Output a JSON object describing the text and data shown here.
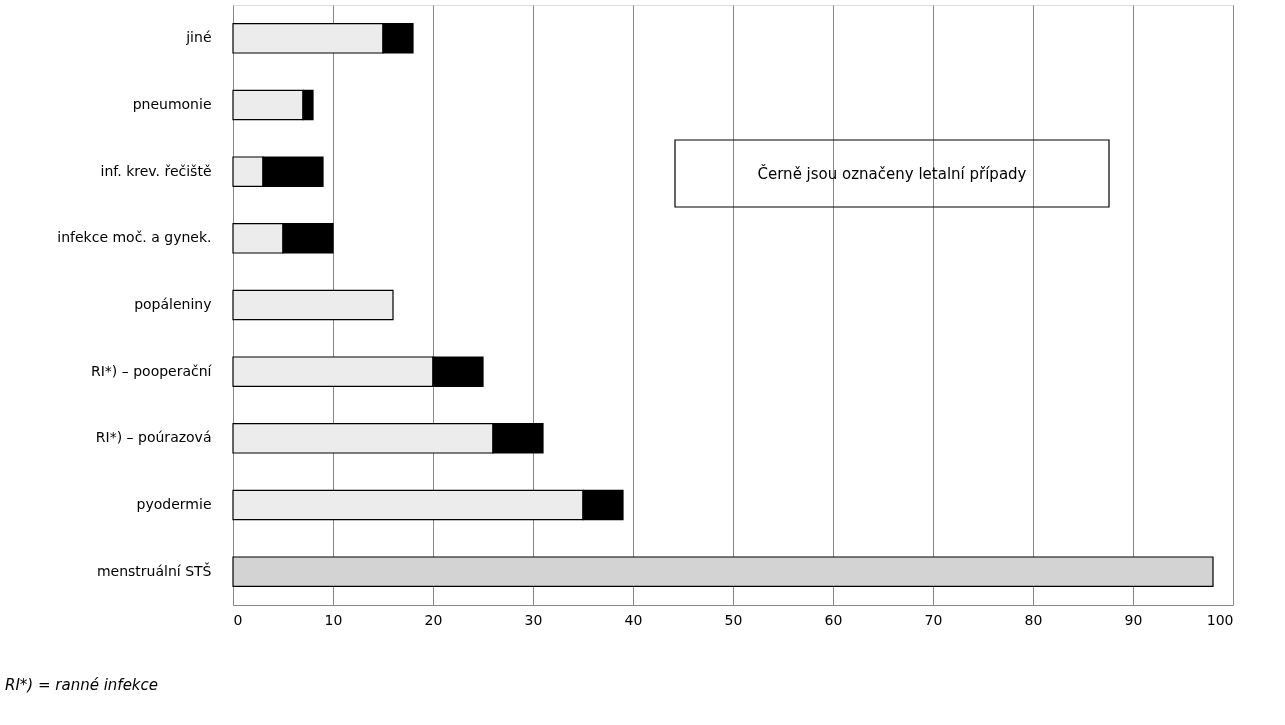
{
  "chart_data": {
    "type": "bar",
    "orientation": "horizontal",
    "stacked": true,
    "categories": [
      "jiné",
      "pneumonie",
      "inf. krev. řečiště",
      "infekce moč. a gynek.",
      "popáleniny",
      "RI*) – pooperační",
      "RI*) – poúrazová",
      "pyodermie",
      "menstruální STŠ"
    ],
    "series": [
      {
        "color": "#ececec",
        "values": [
          15,
          7,
          3,
          5,
          16,
          20,
          26,
          35,
          null
        ]
      },
      {
        "color": "#000000",
        "values": [
          3,
          1,
          6,
          5,
          null,
          5,
          5,
          4,
          null
        ]
      },
      {
        "color": "#d3d3d3",
        "values": [
          null,
          null,
          null,
          null,
          null,
          null,
          null,
          null,
          98
        ]
      }
    ],
    "xlim": [
      0,
      100
    ],
    "xticks": [
      0,
      10,
      20,
      30,
      40,
      50,
      60,
      70,
      80,
      90,
      100
    ],
    "grid": "x",
    "annotations": [
      "Černě jsou označeny letalní případy",
      "RI*) = ranné infekce"
    ]
  }
}
